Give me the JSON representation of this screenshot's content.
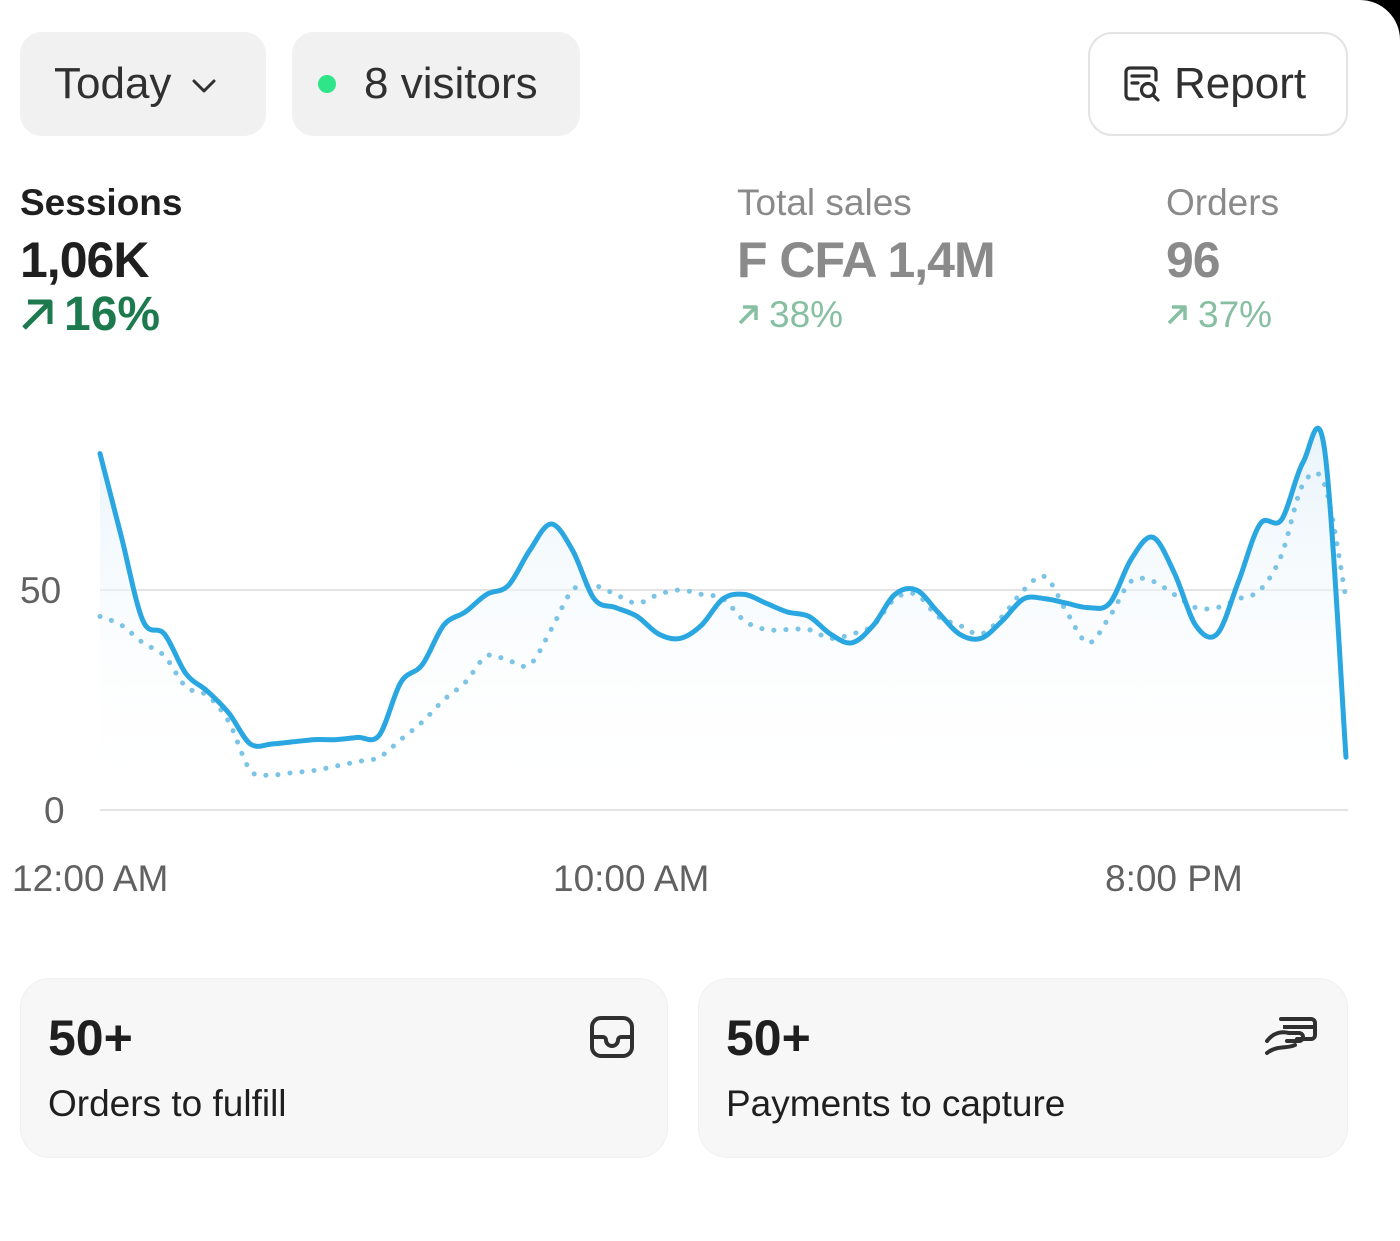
{
  "header": {
    "date_range": {
      "label": "Today",
      "icon": "chevron-down-icon"
    },
    "live_visitors": {
      "label": "8 visitors",
      "dot_color": "#2ee58a"
    },
    "report_button": {
      "label": "Report",
      "icon": "report-search-icon"
    }
  },
  "metrics": [
    {
      "label": "Sessions",
      "value": "1,06K",
      "delta": "16%",
      "trend": "up",
      "active": true
    },
    {
      "label": "Total sales",
      "value": "F CFA 1,4M",
      "delta": "38%",
      "trend": "up",
      "active": false
    },
    {
      "label": "Orders",
      "value": "96",
      "delta": "37%",
      "trend": "up",
      "active": false
    }
  ],
  "chart_data": {
    "type": "line",
    "x_tick_labels": [
      "12:00 AM",
      "10:00 AM",
      "8:00 PM"
    ],
    "y_tick_labels": [
      "0",
      "50"
    ],
    "ylim": [
      0,
      100
    ],
    "grid": true,
    "series": [
      {
        "style": "solid",
        "color": "#2aa7e1",
        "values": [
          81,
          62,
          43,
          40,
          31,
          27,
          22,
          15,
          15,
          15.5,
          16,
          16,
          16.5,
          17,
          29,
          33,
          42,
          45,
          49,
          51,
          59,
          65,
          59,
          48,
          46,
          44,
          40,
          39,
          42,
          48,
          49,
          47,
          45,
          44,
          40,
          38,
          42,
          49,
          50,
          45,
          40,
          39,
          43,
          48,
          48,
          47,
          46,
          47,
          57,
          62,
          54,
          42,
          40,
          52,
          65,
          66,
          79,
          82,
          12
        ]
      },
      {
        "style": "dotted",
        "color": "#7cc4e6",
        "values": [
          44,
          42,
          38,
          35,
          28,
          26,
          20,
          9,
          8,
          8.5,
          9,
          10,
          11,
          12,
          16,
          20,
          25,
          29,
          35,
          34,
          33,
          41,
          50,
          51,
          49,
          47,
          49,
          50,
          49,
          48,
          43,
          41,
          41,
          41,
          39,
          40,
          42,
          48,
          49,
          44,
          42,
          40,
          44,
          50,
          53,
          45,
          38,
          44,
          52,
          52,
          49,
          46,
          46,
          48,
          50,
          58,
          74,
          74,
          48
        ]
      }
    ]
  },
  "cards": [
    {
      "count": "50+",
      "label": "Orders to fulfill",
      "icon": "inbox-icon"
    },
    {
      "count": "50+",
      "label": "Payments to capture",
      "icon": "hand-card-icon"
    }
  ]
}
